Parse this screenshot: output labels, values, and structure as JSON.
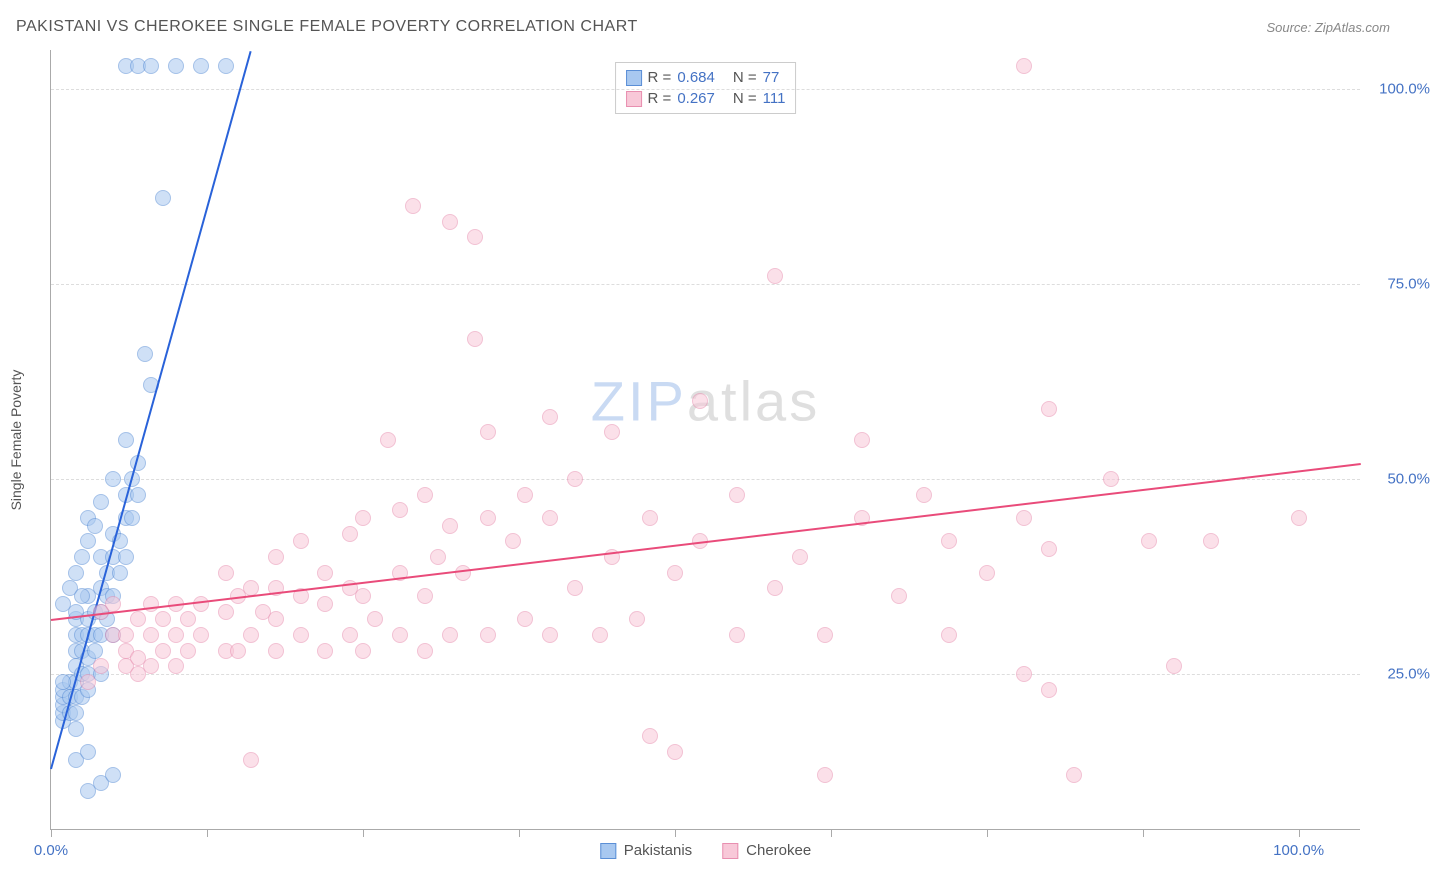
{
  "title": "PAKISTANI VS CHEROKEE SINGLE FEMALE POVERTY CORRELATION CHART",
  "source_label": "Source: ",
  "source_name": "ZipAtlas.com",
  "y_axis_label": "Single Female Poverty",
  "watermark": {
    "zip": "ZIP",
    "atlas": "atlas"
  },
  "chart": {
    "type": "scatter",
    "xlim": [
      0,
      105
    ],
    "ylim": [
      5,
      105
    ],
    "x_ticks": [
      0,
      12.5,
      25,
      37.5,
      50,
      62.5,
      75,
      87.5,
      100
    ],
    "x_tick_labels": {
      "0": "0.0%",
      "100": "100.0%"
    },
    "y_gridlines": [
      25,
      50,
      75,
      100
    ],
    "y_tick_labels": {
      "25": "25.0%",
      "50": "50.0%",
      "75": "75.0%",
      "100": "100.0%"
    },
    "background_color": "#ffffff",
    "grid_color": "#dddddd",
    "axis_color": "#aaaaaa",
    "label_color": "#4472c4",
    "point_radius": 8,
    "point_opacity": 0.55,
    "series": [
      {
        "name": "Pakistanis",
        "color_fill": "#a8c8f0",
        "color_stroke": "#5b8fd6",
        "line_color": "#2962d9",
        "R_label": "R = ",
        "R": "0.684",
        "N_label": "N = ",
        "N": "77",
        "regression": {
          "x1": 0,
          "y1": 13,
          "x2": 16,
          "y2": 105
        },
        "points": [
          [
            1,
            19
          ],
          [
            1,
            20
          ],
          [
            1,
            21
          ],
          [
            1,
            22
          ],
          [
            1,
            23
          ],
          [
            1.5,
            20
          ],
          [
            1.5,
            22
          ],
          [
            1.5,
            24
          ],
          [
            2,
            18
          ],
          [
            2,
            20
          ],
          [
            2,
            22
          ],
          [
            2,
            24
          ],
          [
            2,
            26
          ],
          [
            2,
            28
          ],
          [
            2,
            30
          ],
          [
            2,
            32
          ],
          [
            2.5,
            22
          ],
          [
            2.5,
            25
          ],
          [
            2.5,
            28
          ],
          [
            2.5,
            30
          ],
          [
            3,
            23
          ],
          [
            3,
            25
          ],
          [
            3,
            27
          ],
          [
            3,
            30
          ],
          [
            3,
            32
          ],
          [
            3,
            35
          ],
          [
            3.5,
            28
          ],
          [
            3.5,
            30
          ],
          [
            3.5,
            33
          ],
          [
            4,
            25
          ],
          [
            4,
            30
          ],
          [
            4,
            33
          ],
          [
            4,
            36
          ],
          [
            4,
            40
          ],
          [
            4.5,
            32
          ],
          [
            4.5,
            35
          ],
          [
            4.5,
            38
          ],
          [
            5,
            30
          ],
          [
            5,
            35
          ],
          [
            5,
            40
          ],
          [
            5,
            43
          ],
          [
            5.5,
            38
          ],
          [
            5.5,
            42
          ],
          [
            6,
            40
          ],
          [
            6,
            45
          ],
          [
            6,
            48
          ],
          [
            6.5,
            45
          ],
          [
            6.5,
            50
          ],
          [
            7,
            48
          ],
          [
            7,
            52
          ],
          [
            7.5,
            66
          ],
          [
            8,
            62
          ],
          [
            3,
            10
          ],
          [
            4,
            11
          ],
          [
            5,
            12
          ],
          [
            2,
            14
          ],
          [
            3,
            15
          ],
          [
            9,
            86
          ],
          [
            6,
            103
          ],
          [
            7,
            103
          ],
          [
            8,
            103
          ],
          [
            10,
            103
          ],
          [
            12,
            103
          ],
          [
            14,
            103
          ],
          [
            3,
            45
          ],
          [
            4,
            47
          ],
          [
            5,
            50
          ],
          [
            6,
            55
          ],
          [
            2,
            38
          ],
          [
            2.5,
            40
          ],
          [
            3,
            42
          ],
          [
            3.5,
            44
          ],
          [
            1,
            34
          ],
          [
            1.5,
            36
          ],
          [
            2,
            33
          ],
          [
            2.5,
            35
          ],
          [
            1,
            24
          ]
        ]
      },
      {
        "name": "Cherokee",
        "color_fill": "#f8c8d8",
        "color_stroke": "#e88fb0",
        "line_color": "#e94b7a",
        "R_label": "R = ",
        "R": "0.267",
        "N_label": "N = ",
        "N": "111",
        "regression": {
          "x1": 0,
          "y1": 32,
          "x2": 105,
          "y2": 52
        },
        "points": [
          [
            3,
            24
          ],
          [
            4,
            26
          ],
          [
            4,
            33
          ],
          [
            5,
            30
          ],
          [
            5,
            34
          ],
          [
            6,
            28
          ],
          [
            6,
            30
          ],
          [
            6,
            26
          ],
          [
            7,
            25
          ],
          [
            7,
            27
          ],
          [
            7,
            32
          ],
          [
            8,
            26
          ],
          [
            8,
            30
          ],
          [
            8,
            34
          ],
          [
            9,
            28
          ],
          [
            9,
            32
          ],
          [
            10,
            26
          ],
          [
            10,
            30
          ],
          [
            10,
            34
          ],
          [
            11,
            28
          ],
          [
            11,
            32
          ],
          [
            12,
            30
          ],
          [
            12,
            34
          ],
          [
            14,
            28
          ],
          [
            14,
            33
          ],
          [
            14,
            38
          ],
          [
            15,
            35
          ],
          [
            16,
            30
          ],
          [
            16,
            36
          ],
          [
            16,
            14
          ],
          [
            17,
            33
          ],
          [
            18,
            28
          ],
          [
            18,
            36
          ],
          [
            18,
            40
          ],
          [
            20,
            30
          ],
          [
            20,
            35
          ],
          [
            20,
            42
          ],
          [
            22,
            28
          ],
          [
            22,
            34
          ],
          [
            22,
            38
          ],
          [
            24,
            30
          ],
          [
            24,
            36
          ],
          [
            24,
            43
          ],
          [
            25,
            28
          ],
          [
            25,
            35
          ],
          [
            25,
            45
          ],
          [
            26,
            32
          ],
          [
            27,
            55
          ],
          [
            28,
            30
          ],
          [
            28,
            38
          ],
          [
            28,
            46
          ],
          [
            29,
            85
          ],
          [
            30,
            28
          ],
          [
            30,
            35
          ],
          [
            30,
            48
          ],
          [
            31,
            40
          ],
          [
            32,
            30
          ],
          [
            32,
            44
          ],
          [
            32,
            83
          ],
          [
            33,
            38
          ],
          [
            34,
            68
          ],
          [
            34,
            81
          ],
          [
            35,
            30
          ],
          [
            35,
            45
          ],
          [
            35,
            56
          ],
          [
            37,
            42
          ],
          [
            38,
            32
          ],
          [
            38,
            48
          ],
          [
            40,
            30
          ],
          [
            40,
            45
          ],
          [
            40,
            58
          ],
          [
            42,
            36
          ],
          [
            42,
            50
          ],
          [
            44,
            30
          ],
          [
            45,
            40
          ],
          [
            45,
            56
          ],
          [
            47,
            32
          ],
          [
            48,
            45
          ],
          [
            48,
            17
          ],
          [
            50,
            38
          ],
          [
            50,
            15
          ],
          [
            52,
            42
          ],
          [
            52,
            60
          ],
          [
            55,
            30
          ],
          [
            55,
            48
          ],
          [
            58,
            36
          ],
          [
            58,
            76
          ],
          [
            60,
            40
          ],
          [
            62,
            30
          ],
          [
            62,
            12
          ],
          [
            65,
            45
          ],
          [
            65,
            55
          ],
          [
            68,
            35
          ],
          [
            70,
            48
          ],
          [
            72,
            30
          ],
          [
            72,
            42
          ],
          [
            75,
            38
          ],
          [
            78,
            25
          ],
          [
            78,
            45
          ],
          [
            80,
            23
          ],
          [
            80,
            41
          ],
          [
            80,
            59
          ],
          [
            82,
            12
          ],
          [
            85,
            50
          ],
          [
            88,
            42
          ],
          [
            90,
            26
          ],
          [
            93,
            42
          ],
          [
            78,
            103
          ],
          [
            100,
            45
          ],
          [
            15,
            28
          ],
          [
            18,
            32
          ]
        ]
      }
    ]
  },
  "legend_bottom": [
    {
      "label": "Pakistanis",
      "fill": "#a8c8f0",
      "stroke": "#5b8fd6"
    },
    {
      "label": "Cherokee",
      "fill": "#f8c8d8",
      "stroke": "#e88fb0"
    }
  ]
}
